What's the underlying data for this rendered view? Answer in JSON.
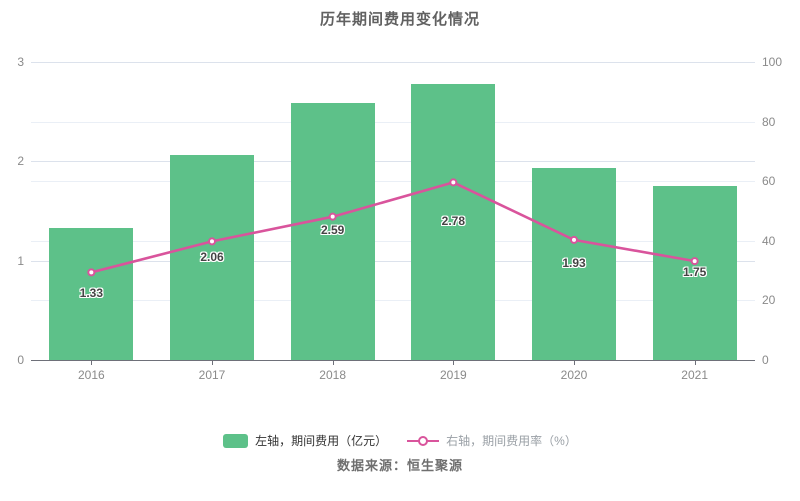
{
  "title": "历年期间费用变化情况",
  "source": "数据来源：恒生聚源",
  "legend": [
    {
      "label": "左轴，期间费用（亿元）",
      "marker": "bar-swatch"
    },
    {
      "label": "右轴，期间费用率（%）",
      "marker": "line-circle"
    }
  ],
  "colors": {
    "bar": "#5DC189",
    "line": "#D9549C",
    "grid_left": "#DCE2EC",
    "grid_right": "#EAEFF6",
    "axis": "#6E7079",
    "axis_label": "#8A8A8A",
    "title": "#616161",
    "value_label": "#444444",
    "legend_text_bar": "#333333",
    "legend_text_line": "#9AA0A6",
    "source_text": "#6F6F6F"
  },
  "chart_data": {
    "type": "bar",
    "title": "历年期间费用变化情况",
    "categories": [
      "2016",
      "2017",
      "2018",
      "2019",
      "2020",
      "2021"
    ],
    "series": [
      {
        "name": "左轴，期间费用（亿元）",
        "type": "bar",
        "axis": "left",
        "values": [
          1.33,
          2.06,
          2.59,
          2.78,
          1.93,
          1.75
        ],
        "labels": [
          "1.33",
          "2.06",
          "2.59",
          "2.78",
          "1.93",
          "1.75"
        ]
      },
      {
        "name": "右轴，期间费用率（%）",
        "type": "line",
        "axis": "right",
        "values": [
          29.4,
          39.8,
          48.1,
          59.6,
          40.3,
          33.2
        ]
      }
    ],
    "left_axis": {
      "min": 0,
      "max": 3,
      "ticks": [
        0,
        1,
        2,
        3
      ]
    },
    "right_axis": {
      "min": 0,
      "max": 100,
      "ticks": [
        0,
        20,
        40,
        60,
        80,
        100
      ]
    },
    "grid": true,
    "legend_position": "bottom"
  }
}
